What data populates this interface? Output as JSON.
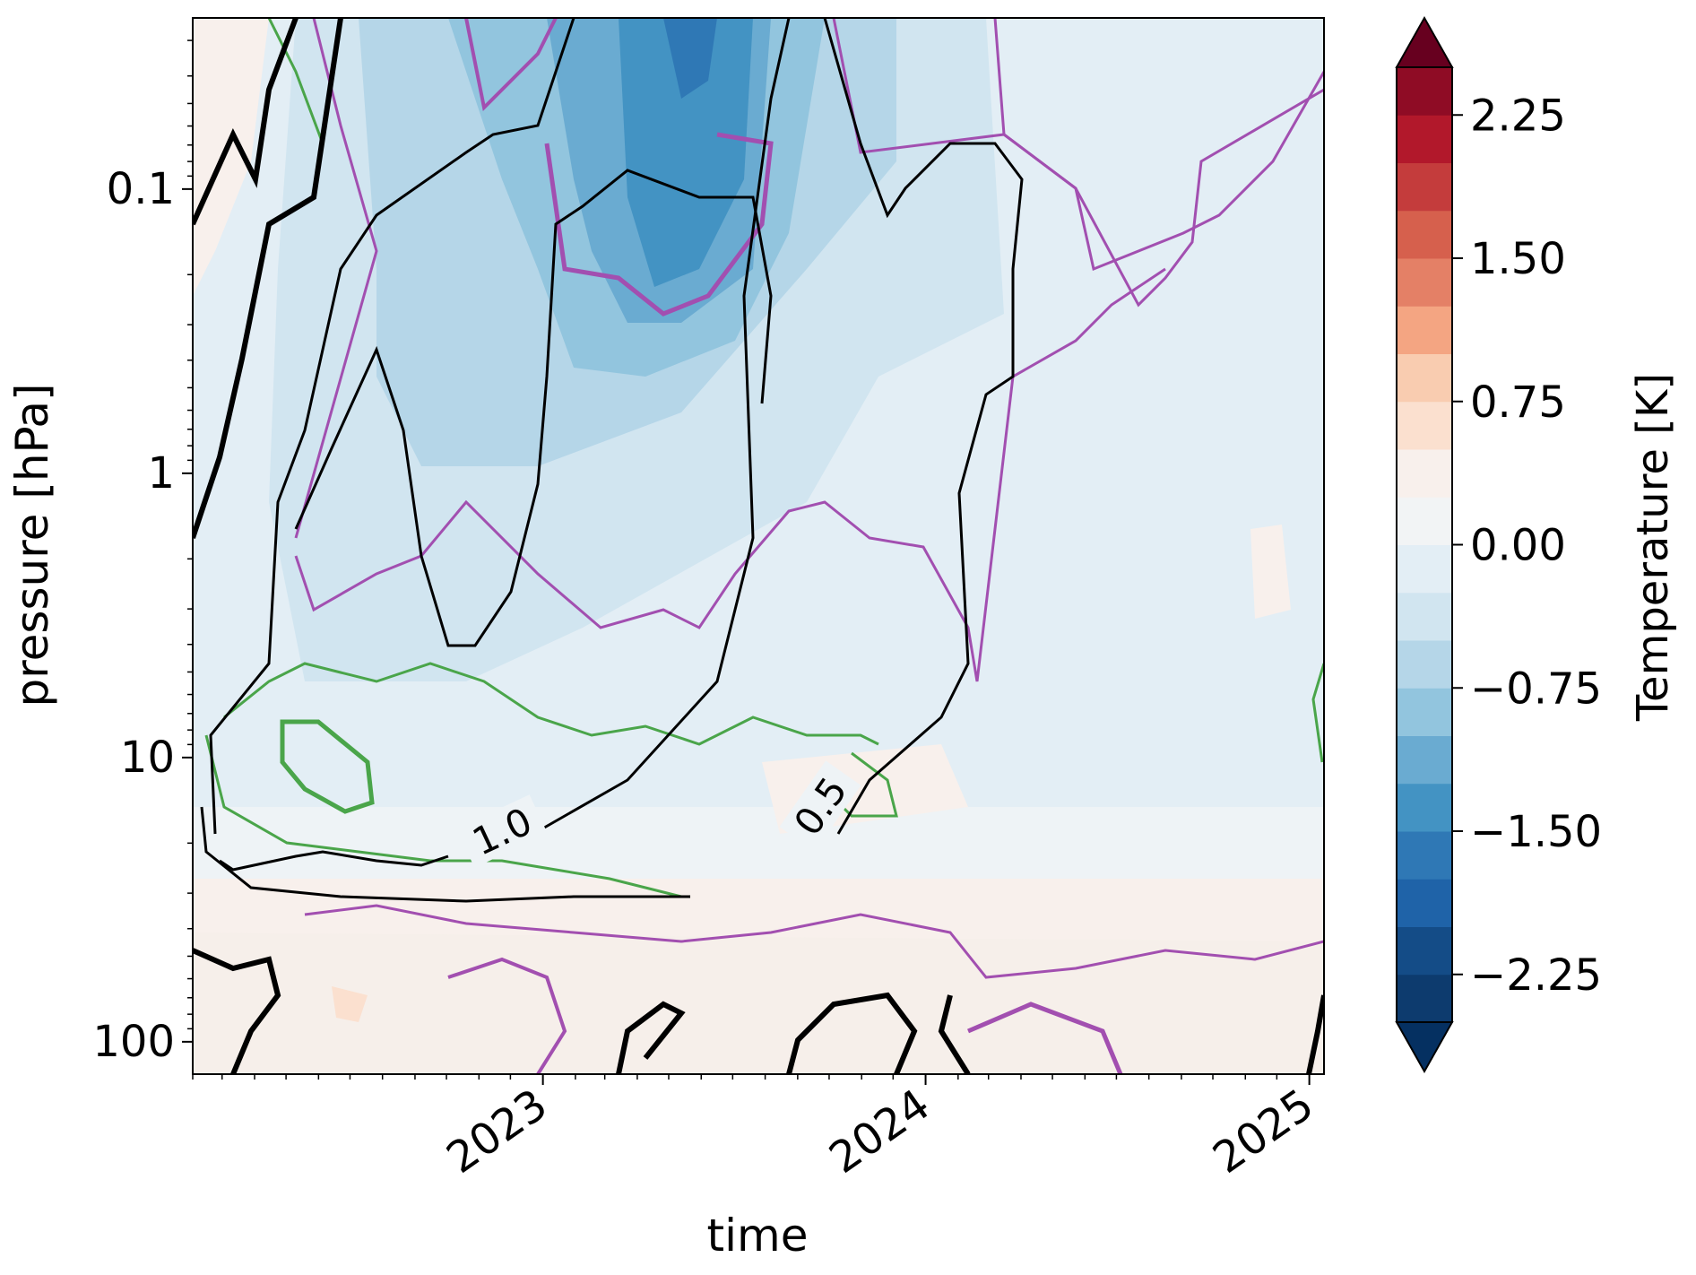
{
  "chart_data": {
    "type": "heatmap",
    "xlabel": "time",
    "ylabel": "pressure [hPa]",
    "y_scale": "log",
    "y_inverted": true,
    "xlim": [
      "2022-02-01",
      "2025-01-15"
    ],
    "ylim_hPa": [
      130,
      0.025
    ],
    "x_ticks": [
      "2023",
      "2024",
      "2025"
    ],
    "y_ticks": [
      "0.1",
      "1",
      "10",
      "100"
    ],
    "colorbar": {
      "label": "Temperature [K]",
      "colormap": "RdBu_r",
      "range": [
        -2.5,
        2.5
      ],
      "step": 0.25,
      "extend": "both",
      "tick_labels": [
        "2.25",
        "1.50",
        "0.75",
        "0.00",
        "−0.75",
        "−1.50",
        "−2.25"
      ],
      "colors": [
        "#0d3b6e",
        "#144c87",
        "#1f63a8",
        "#2f78b5",
        "#4393c3",
        "#6aabd1",
        "#92c5de",
        "#b5d6e8",
        "#d1e5f0",
        "#e3eef5",
        "#f2f4f5",
        "#f8f0ec",
        "#fbe0cf",
        "#f9ccb0",
        "#f4a582",
        "#e48066",
        "#d6604d",
        "#c43c3c",
        "#b2182b",
        "#8f0c25"
      ],
      "under_color": "#053061",
      "over_color": "#67001f"
    },
    "anomaly_field_summary": "Cold anomaly (~-1.0 to -1.5 K) peaking 2023-04 near 0.05-0.3 hPa, descending to ~10 hPa by 2024; weak warm anomaly (~+0.1 K) near 30-100 hPa.",
    "contour_labels": [
      "1.0",
      "0.5"
    ],
    "contour_colors": {
      "black": "#000000",
      "purple": "#a24fb0",
      "green": "#4aa54a"
    }
  }
}
